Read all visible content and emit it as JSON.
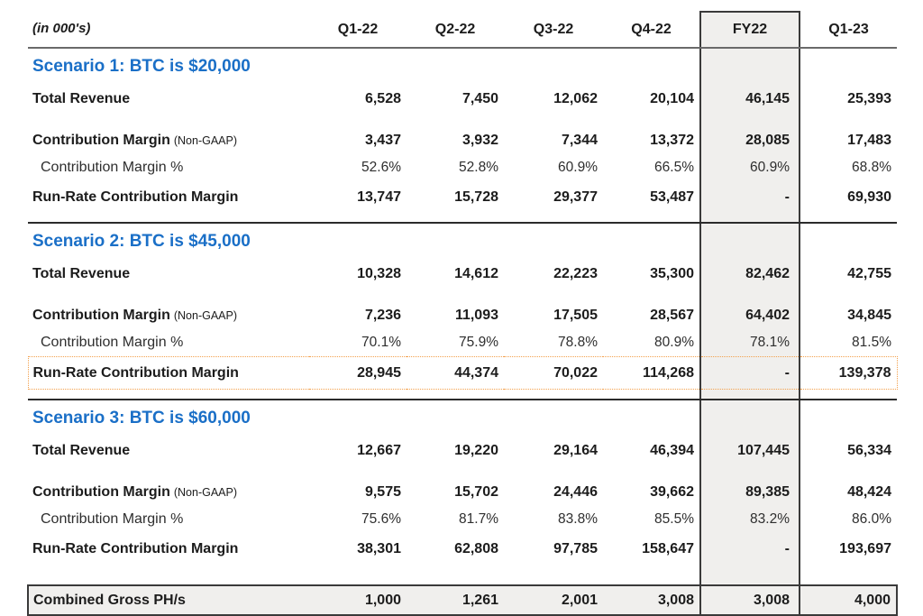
{
  "table": {
    "unit_label": "(in 000's)",
    "columns": [
      "Q1-22",
      "Q2-22",
      "Q3-22",
      "Q4-22",
      "FY22",
      "Q1-23"
    ],
    "highlight_column": "FY22",
    "highlight_column_index": 4,
    "sections": [
      {
        "title": "Scenario 1: BTC is $20,000",
        "separator_after": true,
        "rows": [
          {
            "label": "Total Revenue",
            "kind": "revenue",
            "values": [
              "6,528",
              "7,450",
              "12,062",
              "20,104",
              "46,145",
              "25,393"
            ]
          },
          {
            "label": "Contribution Margin",
            "suffix": "(Non-GAAP)",
            "kind": "cm",
            "values": [
              "3,437",
              "3,932",
              "7,344",
              "13,372",
              "28,085",
              "17,483"
            ]
          },
          {
            "label": "Contribution Margin %",
            "kind": "pct",
            "values": [
              "52.6%",
              "52.8%",
              "60.9%",
              "66.5%",
              "60.9%",
              "68.8%"
            ]
          },
          {
            "label": "Run-Rate Contribution Margin",
            "kind": "runrate",
            "values": [
              "13,747",
              "15,728",
              "29,377",
              "53,487",
              "-",
              "69,930"
            ]
          }
        ]
      },
      {
        "title": "Scenario 2: BTC is $45,000",
        "separator_after": true,
        "rows": [
          {
            "label": "Total Revenue",
            "kind": "revenue",
            "values": [
              "10,328",
              "14,612",
              "22,223",
              "35,300",
              "82,462",
              "42,755"
            ]
          },
          {
            "label": "Contribution Margin",
            "suffix": "(Non-GAAP)",
            "kind": "cm",
            "values": [
              "7,236",
              "11,093",
              "17,505",
              "28,567",
              "64,402",
              "34,845"
            ]
          },
          {
            "label": "Contribution Margin %",
            "kind": "pct",
            "values": [
              "70.1%",
              "75.9%",
              "78.8%",
              "80.9%",
              "78.1%",
              "81.5%"
            ]
          },
          {
            "label": "Run-Rate Contribution Margin",
            "kind": "runrate",
            "boxed": true,
            "values": [
              "28,945",
              "44,374",
              "70,022",
              "114,268",
              "-",
              "139,378"
            ]
          }
        ]
      },
      {
        "title": "Scenario 3: BTC is $60,000",
        "separator_after": false,
        "rows": [
          {
            "label": "Total Revenue",
            "kind": "revenue",
            "values": [
              "12,667",
              "19,220",
              "29,164",
              "46,394",
              "107,445",
              "56,334"
            ]
          },
          {
            "label": "Contribution Margin",
            "suffix": "(Non-GAAP)",
            "kind": "cm",
            "values": [
              "9,575",
              "15,702",
              "24,446",
              "39,662",
              "89,385",
              "48,424"
            ]
          },
          {
            "label": "Contribution Margin %",
            "kind": "pct",
            "values": [
              "75.6%",
              "81.7%",
              "83.8%",
              "85.5%",
              "83.2%",
              "86.0%"
            ]
          },
          {
            "label": "Run-Rate Contribution Margin",
            "kind": "runrate",
            "values": [
              "38,301",
              "62,808",
              "97,785",
              "158,647",
              "-",
              "193,697"
            ]
          }
        ]
      }
    ],
    "footer_row": {
      "label": "Combined Gross PH/s",
      "values": [
        "1,000",
        "1,261",
        "2,001",
        "3,008",
        "3,008",
        "4,000"
      ]
    }
  },
  "colors": {
    "accent_blue": "#1a6fc7",
    "highlight_fill": "#f0efed",
    "border_dark": "#3a3a3a",
    "header_rule": "#6a6a6a",
    "dotted_orange": "#f3a04b"
  }
}
